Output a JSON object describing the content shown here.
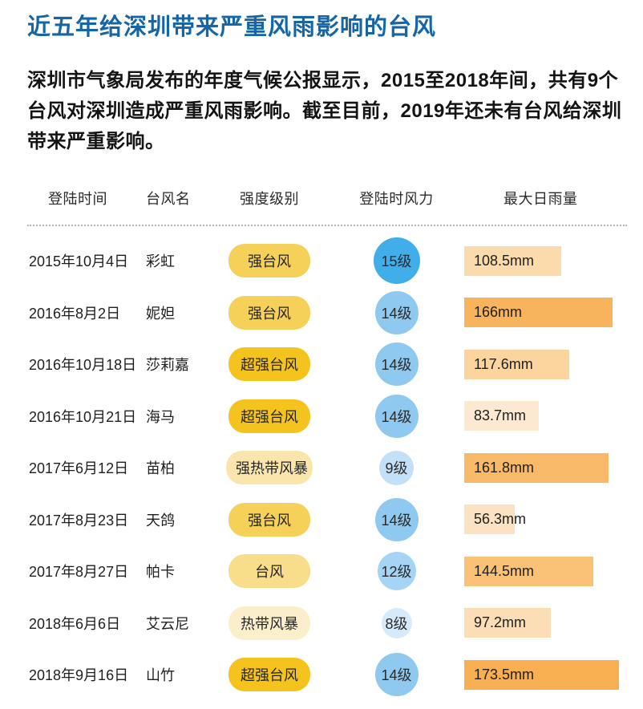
{
  "page": {
    "title": "近五年给深圳带来严重风雨影响的台风",
    "intro_lines": [
      "深圳市气象局发布的年度气候公报显示，2015至2018年间，共有9个",
      "台风对深圳造成严重风雨影响。截至目前，2019年还未有台风给深圳",
      "带来严重影响。"
    ]
  },
  "styles": {
    "title_color": "#1565a7",
    "intensity_colors": {
      "超强台风": "#f5c31d",
      "强台风": "#f6d159",
      "台风": "#f8de8a",
      "强热带风暴": "#fae6ac",
      "热带风暴": "#fbefcb"
    },
    "wind_colors": {
      "15": "#41aee9",
      "14": "#8fc9f0",
      "12": "#a6d4f4",
      "9": "#c2e1f8",
      "8": "#d5eafa"
    }
  },
  "table": {
    "headers": [
      "登陆时间",
      "台风名",
      "强度级别",
      "登陆时风力",
      "最大日雨量"
    ],
    "rows": [
      {
        "date": "2015年10月4日",
        "name": "彩虹",
        "intensity": "强台风",
        "wind_label": "15级",
        "wind_level": 15,
        "rain_label": "108.5mm",
        "rain_mm": 108.5,
        "bar_color": "#fbdaac"
      },
      {
        "date": "2016年8月2日",
        "name": "妮妲",
        "intensity": "强台风",
        "wind_label": "14级",
        "wind_level": 14,
        "rain_label": "166mm",
        "rain_mm": 166,
        "bar_color": "#f8b45c"
      },
      {
        "date": "2016年10月18日",
        "name": "莎莉嘉",
        "intensity": "超强台风",
        "wind_label": "14级",
        "wind_level": 14,
        "rain_label": "117.6mm",
        "rain_mm": 117.6,
        "bar_color": "#fbd49e"
      },
      {
        "date": "2016年10月21日",
        "name": "海马",
        "intensity": "超强台风",
        "wind_label": "14级",
        "wind_level": 14,
        "rain_label": "83.7mm",
        "rain_mm": 83.7,
        "bar_color": "#fce9d2"
      },
      {
        "date": "2017年6月12日",
        "name": "苗柏",
        "intensity": "强热带风暴",
        "wind_label": "9级",
        "wind_level": 9,
        "rain_label": "161.8mm",
        "rain_mm": 161.8,
        "bar_color": "#f8ba68"
      },
      {
        "date": "2017年8月23日",
        "name": "天鸽",
        "intensity": "强台风",
        "wind_label": "14级",
        "wind_level": 14,
        "rain_label": "56.3mm",
        "rain_mm": 56.3,
        "bar_color": "#fbe2c2"
      },
      {
        "date": "2017年8月27日",
        "name": "帕卡",
        "intensity": "台风",
        "wind_label": "12级",
        "wind_level": 12,
        "rain_label": "144.5mm",
        "rain_mm": 144.5,
        "bar_color": "#f9c276"
      },
      {
        "date": "2018年6月6日",
        "name": "艾云尼",
        "intensity": "热带风暴",
        "wind_label": "8级",
        "wind_level": 8,
        "rain_label": "97.2mm",
        "rain_mm": 97.2,
        "bar_color": "#fbddb6"
      },
      {
        "date": "2018年9月16日",
        "name": "山竹",
        "intensity": "超强台风",
        "wind_label": "14级",
        "wind_level": 14,
        "rain_label": "173.5mm",
        "rain_mm": 173.5,
        "bar_color": "#f8af52"
      }
    ]
  },
  "chart_data": {
    "type": "bar",
    "title": "近五年给深圳带来严重风雨影响的台风",
    "subtitle": "深圳市气象局发布的年度气候公报显示，2015至2018年间，共有9个台风对深圳造成严重风雨影响。截至目前，2019年还未有台风给深圳带来严重影响。",
    "categories": [
      "彩虹",
      "妮妲",
      "莎莉嘉",
      "海马",
      "苗柏",
      "天鸽",
      "帕卡",
      "艾云尼",
      "山竹"
    ],
    "landing_dates": [
      "2015年10月4日",
      "2016年8月2日",
      "2016年10月18日",
      "2016年10月21日",
      "2017年6月12日",
      "2017年8月23日",
      "2017年8月27日",
      "2018年6月6日",
      "2018年9月16日"
    ],
    "intensity_levels": [
      "强台风",
      "强台风",
      "超强台风",
      "超强台风",
      "强热带风暴",
      "强台风",
      "台风",
      "热带风暴",
      "超强台风"
    ],
    "series": [
      {
        "name": "最大日雨量(mm)",
        "values": [
          108.5,
          166,
          117.6,
          83.7,
          161.8,
          56.3,
          144.5,
          97.2,
          173.5
        ]
      },
      {
        "name": "登陆时风力(级)",
        "values": [
          15,
          14,
          14,
          14,
          9,
          14,
          12,
          8,
          14
        ]
      }
    ],
    "xlabel": "台风名",
    "ylabel": "最大日雨量",
    "ylim": [
      0,
      185
    ],
    "orientation": "horizontal",
    "grid": false,
    "legend_position": "none"
  }
}
